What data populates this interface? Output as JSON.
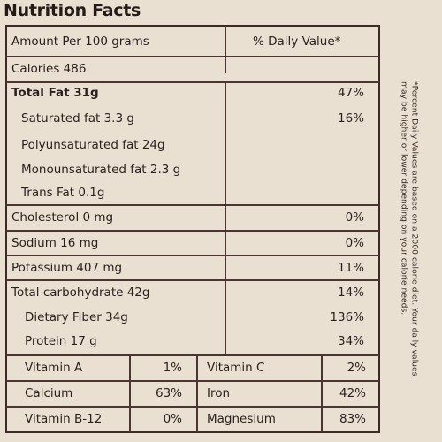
{
  "title": "Nutrition Facts",
  "header": {
    "amount_label": "Amount Per 100 grams",
    "dv_label": "% Daily Value*"
  },
  "calories": "Calories 486",
  "rows": [
    {
      "label": "Total Fat 31g",
      "value": "47%"
    },
    {
      "label": "Saturated fat 3.3 g",
      "value": "16%"
    },
    {
      "label": "Polyunsaturated fat 24g",
      "value": ""
    },
    {
      "label": "Monounsaturated fat 2.3 g",
      "value": ""
    },
    {
      "label": "Trans Fat 0.1g",
      "value": ""
    },
    {
      "label": "Cholesterol 0 mg",
      "value": "0%"
    },
    {
      "label": "Sodium 16 mg",
      "value": "0%"
    },
    {
      "label": "Potassium 407 mg",
      "value": "11%"
    },
    {
      "label": "Total carbohydrate 42g",
      "value": "14%"
    },
    {
      "label": "Dietary Fiber 34g",
      "value": "136%"
    },
    {
      "label": "Protein 17 g",
      "value": "34%"
    }
  ],
  "vitamins": [
    {
      "left_name": "Vitamin A",
      "left_value": "1%",
      "right_name": "Vitamin C",
      "right_value": "2%"
    },
    {
      "left_name": "Calcium",
      "left_value": "63%",
      "right_name": "Iron",
      "right_value": "42%"
    },
    {
      "left_name": "Vitamin B-12",
      "left_value": "0%",
      "right_name": "Magnesium",
      "right_value": "83%"
    }
  ],
  "footnote": "*Percent Daily Values are based on a 2000 calorie diet. Your daily values may be higher or lower depending on your calorie needs."
}
